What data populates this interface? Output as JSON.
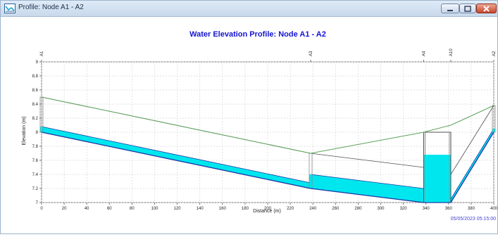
{
  "window": {
    "title": "Profile: Node A1 - A2",
    "icon": "profile-chart-icon",
    "controls": [
      "minimize-icon",
      "maximize-icon",
      "close-icon"
    ]
  },
  "chart_data": {
    "type": "line",
    "title": "Water Elevation Profile: Node A1 - A2",
    "xlabel": "Distance (m)",
    "ylabel": "Elevation (m)",
    "xlim": [
      0,
      400
    ],
    "ylim": [
      7,
      9
    ],
    "x_ticks": [
      0,
      20,
      40,
      60,
      80,
      100,
      120,
      140,
      160,
      180,
      200,
      220,
      240,
      260,
      280,
      300,
      320,
      340,
      360,
      380,
      400
    ],
    "y_ticks": [
      "7",
      "7.2",
      "7.4",
      "7.6",
      "7.8",
      "8",
      "8.2",
      "8.4",
      "8.6",
      "8.8",
      "9"
    ],
    "grid": true,
    "nodes": [
      {
        "name": "A1",
        "x": 0
      },
      {
        "name": "A3",
        "x": 238
      },
      {
        "name": "A4",
        "x": 338
      },
      {
        "name": "A10",
        "x": 362
      },
      {
        "name": "A2",
        "x": 400
      }
    ],
    "series": [
      {
        "values": [
          {
            "x": 0,
            "y": 8.5
          },
          {
            "x": 238,
            "y": 7.7
          },
          {
            "x": 338,
            "y": 8.0
          },
          {
            "x": 362,
            "y": 8.1
          },
          {
            "x": 400,
            "y": 8.38
          }
        ]
      },
      {
        "values": [
          {
            "x": 0,
            "y": 8.0
          },
          {
            "x": 238,
            "y": 7.2
          },
          {
            "x": 338,
            "y": 7.0
          },
          {
            "x": 362,
            "y": 7.0
          },
          {
            "x": 400,
            "y": 8.0
          }
        ]
      }
    ],
    "conduits": [
      {
        "from": 0,
        "to": 238,
        "invert": [
          8.0,
          7.2
        ],
        "crown": [
          8.5,
          7.7
        ],
        "water": [
          8.08,
          7.28
        ]
      },
      {
        "from": 238,
        "to": 338,
        "invert": [
          7.2,
          7.0
        ],
        "crown": [
          7.7,
          7.5
        ],
        "water": [
          7.4,
          7.2
        ]
      },
      {
        "from": 362,
        "to": 400,
        "invert": [
          7.0,
          8.0
        ],
        "crown": [
          7.4,
          8.38
        ],
        "water": [
          7.05,
          8.05
        ]
      }
    ],
    "storage_nodes": [
      {
        "x1": 338,
        "x2": 362,
        "bottom": 7.0,
        "top": 8.0,
        "water": 7.68
      }
    ],
    "node_columns": [
      {
        "x": 0,
        "bottom": 8.0,
        "top": 8.5,
        "water": 8.08
      },
      {
        "x": 238,
        "bottom": 7.2,
        "top": 7.7,
        "water": 7.4
      },
      {
        "x": 400,
        "bottom": 8.0,
        "top": 8.38,
        "water": 8.05
      }
    ],
    "colors": {
      "hgl": "#5aa35a",
      "water": "#00e6ee",
      "invert": "#1e3ca8",
      "crown": "#505050",
      "title": "#1414d2",
      "timestamp": "#4646d2"
    },
    "timestamp": "05/05/2023 05:15:00"
  }
}
